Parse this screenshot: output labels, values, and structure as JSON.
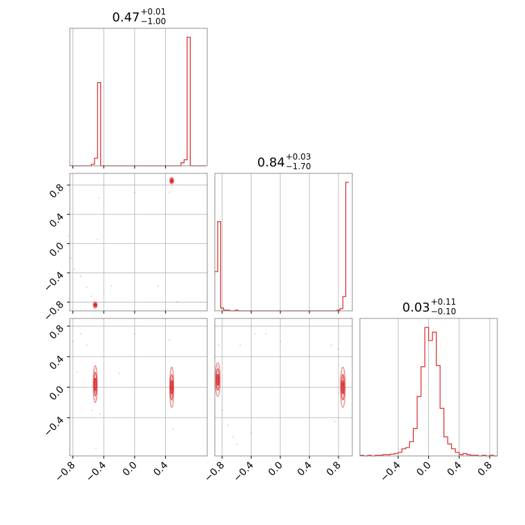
{
  "chart_data": [
    {
      "type": "histogram",
      "panel": "diag-1",
      "title_value": "0.47",
      "title_upper": "+0.01",
      "title_lower": "−1.00",
      "xlim": [
        -0.84,
        0.94
      ],
      "bin_edges": [
        -0.84,
        -0.8,
        -0.76,
        -0.72,
        -0.68,
        -0.64,
        -0.6,
        -0.56,
        -0.52,
        -0.48,
        -0.44,
        -0.4,
        -0.36,
        -0.32,
        -0.28,
        -0.24,
        -0.2,
        -0.16,
        -0.12,
        -0.08,
        -0.04,
        0.0,
        0.04,
        0.08,
        0.12,
        0.16,
        0.2,
        0.24,
        0.28,
        0.32,
        0.36,
        0.4,
        0.44,
        0.48,
        0.52,
        0.56,
        0.6,
        0.64,
        0.68,
        0.72,
        0.76,
        0.8,
        0.84,
        0.88,
        0.92
      ],
      "counts": [
        0,
        0,
        0,
        0,
        0,
        0,
        0,
        1,
        5,
        55,
        0,
        0,
        0,
        0,
        0,
        0,
        0,
        0,
        0,
        0,
        0,
        0,
        0,
        0,
        0,
        0,
        0,
        0,
        0,
        0,
        0,
        0,
        0,
        0,
        0,
        0,
        2,
        4,
        85,
        0,
        0,
        0,
        0,
        0
      ],
      "color": "#d62728"
    },
    {
      "type": "histogram",
      "panel": "diag-2",
      "title_value": "0.84",
      "title_upper": "+0.03",
      "title_lower": "−1.70",
      "xlim": [
        -0.9,
        0.99
      ],
      "bin_edges": [
        -0.9,
        -0.86,
        -0.82,
        -0.78,
        -0.74,
        -0.7,
        -0.66,
        -0.62,
        -0.58,
        -0.54,
        -0.5,
        -0.46,
        -0.42,
        -0.38,
        -0.34,
        -0.3,
        -0.26,
        -0.22,
        -0.18,
        -0.14,
        -0.1,
        -0.06,
        -0.02,
        0.02,
        0.06,
        0.1,
        0.14,
        0.18,
        0.22,
        0.26,
        0.3,
        0.34,
        0.38,
        0.42,
        0.46,
        0.5,
        0.54,
        0.58,
        0.62,
        0.66,
        0.7,
        0.74,
        0.78,
        0.82,
        0.86,
        0.9,
        0.94
      ],
      "counts": [
        55,
        125,
        4,
        1,
        1,
        0,
        0,
        1,
        0,
        0,
        0,
        0,
        0,
        0,
        0,
        0,
        0,
        0,
        0,
        0,
        0,
        0,
        0,
        0,
        0,
        0,
        0,
        0,
        0,
        0,
        0,
        0,
        0,
        0,
        0,
        0,
        0,
        0,
        0,
        0,
        0,
        0,
        1,
        3,
        20,
        180
      ],
      "color": "#d62728"
    },
    {
      "type": "histogram",
      "panel": "diag-3",
      "title_value": "0.03",
      "title_upper": "+0.11",
      "title_lower": "−0.10",
      "xlim": [
        -0.9,
        0.9
      ],
      "bin_edges": [
        -0.9,
        -0.85,
        -0.8,
        -0.75,
        -0.7,
        -0.65,
        -0.6,
        -0.55,
        -0.5,
        -0.45,
        -0.4,
        -0.35,
        -0.3,
        -0.25,
        -0.2,
        -0.15,
        -0.1,
        -0.05,
        0.0,
        0.05,
        0.1,
        0.15,
        0.2,
        0.25,
        0.3,
        0.35,
        0.4,
        0.45,
        0.5,
        0.55,
        0.6,
        0.65,
        0.7,
        0.75,
        0.8,
        0.85,
        0.9
      ],
      "counts": [
        0.5,
        0,
        0.5,
        0,
        0.5,
        0.5,
        1,
        1,
        1.5,
        2,
        3,
        6,
        7,
        12,
        23,
        50,
        75,
        108,
        97,
        104,
        76,
        40,
        16,
        10,
        6,
        3,
        1,
        2,
        1,
        0.5,
        0.5,
        0,
        0.5,
        0,
        0.5,
        0
      ],
      "color": "#d62728"
    },
    {
      "type": "scatter",
      "panel": "x1-vs-x2",
      "xlim": [
        -0.84,
        0.94
      ],
      "ylim": [
        -0.92,
        0.96
      ],
      "clusters": [
        {
          "x": -0.51,
          "y": -0.84,
          "sx": 0.012,
          "sy": 0.02,
          "n": 25
        },
        {
          "x": 0.48,
          "y": 0.86,
          "sx": 0.012,
          "sy": 0.02,
          "n": 25
        }
      ],
      "outliers": [
        [
          -0.82,
          -0.2
        ],
        [
          -0.78,
          -0.35
        ],
        [
          -0.7,
          -0.45
        ],
        [
          -0.62,
          -0.6
        ],
        [
          -0.56,
          -0.72
        ],
        [
          -0.48,
          0.06
        ],
        [
          -0.46,
          0.62
        ],
        [
          -0.3,
          -0.58
        ],
        [
          0.3,
          -0.58
        ],
        [
          0.45,
          0.7
        ],
        [
          0.55,
          -0.8
        ],
        [
          0.0,
          0.7
        ],
        [
          -0.86,
          0.1
        ]
      ],
      "color": "#d62728"
    },
    {
      "type": "scatter",
      "panel": "x1-vs-x3",
      "xlim": [
        -0.84,
        0.94
      ],
      "ylim": [
        -0.9,
        0.9
      ],
      "clusters": [
        {
          "x": -0.51,
          "y": 0.04,
          "sx": 0.012,
          "sy": 0.11,
          "n": 45
        },
        {
          "x": 0.48,
          "y": 0.0,
          "sx": 0.012,
          "sy": 0.12,
          "n": 45
        }
      ],
      "outliers": [
        [
          -0.7,
          0.7
        ],
        [
          -0.62,
          0.55
        ],
        [
          -0.75,
          0.2
        ],
        [
          -0.55,
          -0.3
        ],
        [
          -0.45,
          -0.35
        ],
        [
          -0.2,
          0.18
        ],
        [
          0.45,
          0.62
        ],
        [
          0.5,
          -0.55
        ],
        [
          -0.5,
          -0.8
        ],
        [
          0.0,
          0.7
        ],
        [
          -0.8,
          0.6
        ]
      ],
      "color": "#d62728"
    },
    {
      "type": "scatter",
      "panel": "x2-vs-x3",
      "xlim": [
        -0.9,
        0.99
      ],
      "ylim": [
        -0.9,
        0.9
      ],
      "clusters": [
        {
          "x": -0.86,
          "y": 0.1,
          "sx": 0.015,
          "sy": 0.1,
          "n": 45
        },
        {
          "x": 0.86,
          "y": 0.0,
          "sx": 0.015,
          "sy": 0.12,
          "n": 45
        }
      ],
      "outliers": [
        [
          -0.8,
          -0.3
        ],
        [
          -0.72,
          -0.5
        ],
        [
          -0.65,
          -0.65
        ],
        [
          -0.6,
          -0.75
        ],
        [
          -0.4,
          -0.6
        ],
        [
          -0.55,
          0.55
        ],
        [
          -0.35,
          0.7
        ],
        [
          0.0,
          0.6
        ],
        [
          0.7,
          0.55
        ],
        [
          0.8,
          0.5
        ],
        [
          0.75,
          -0.45
        ],
        [
          -0.85,
          0.55
        ],
        [
          -0.2,
          0.7
        ]
      ],
      "color": "#d62728"
    }
  ],
  "ticks": {
    "x1": [
      "−0.8",
      "−0.4",
      "0.0",
      "0.4"
    ],
    "x2": [
      "−0.8",
      "−0.4",
      "0.0",
      "0.4",
      "0.8"
    ],
    "x3": [
      "−0.4",
      "0.0",
      "0.4",
      "0.8"
    ],
    "y2": [
      "0.8",
      "0.4",
      "0.0",
      "−0.4",
      "−0.8"
    ],
    "y3": [
      "0.8",
      "0.4",
      "0.0",
      "−0.4"
    ]
  },
  "tick_values": {
    "x1": [
      -0.8,
      -0.4,
      0.0,
      0.4
    ],
    "x2": [
      -0.8,
      -0.4,
      0.0,
      0.4,
      0.8
    ],
    "x3": [
      -0.4,
      0.0,
      0.4,
      0.8
    ],
    "y2": [
      0.8,
      0.4,
      0.0,
      -0.4,
      -0.8
    ],
    "y3": [
      0.8,
      0.4,
      0.0,
      -0.4
    ]
  },
  "colors": {
    "line": "#d62728",
    "grid": "#b0b0b0",
    "frame": "#808080"
  }
}
